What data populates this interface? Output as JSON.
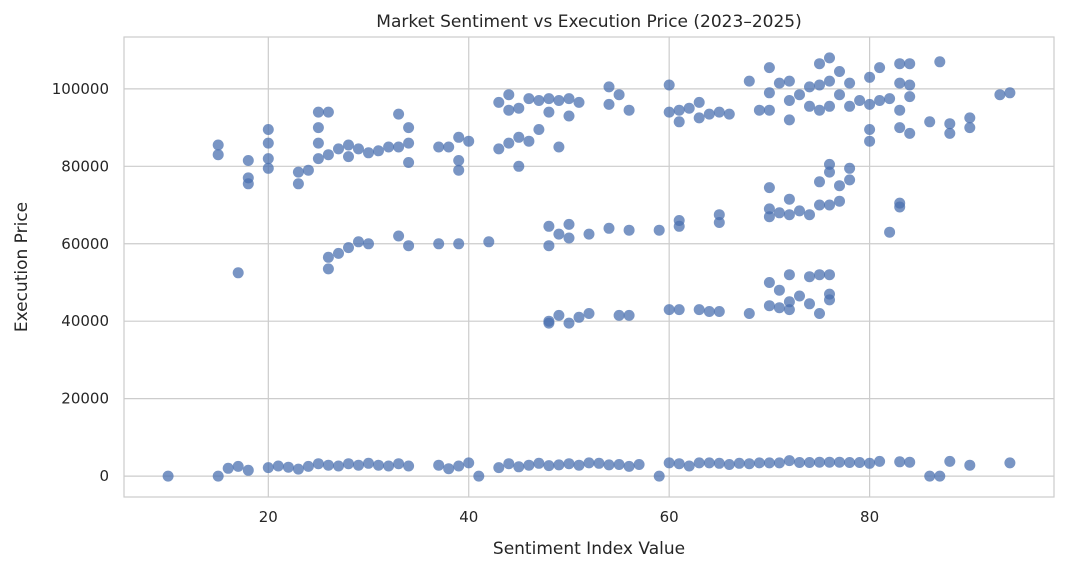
{
  "chart_data": {
    "type": "scatter",
    "title": "Market Sentiment vs Execution Price (2023–2025)",
    "xlabel": "Sentiment Index Value",
    "ylabel": "Execution Price",
    "xlim": [
      5.6,
      98.4
    ],
    "ylim": [
      -5400,
      113400
    ],
    "x_ticks": [
      20,
      40,
      60,
      80
    ],
    "y_ticks": [
      0,
      20000,
      40000,
      60000,
      80000,
      100000
    ],
    "grid": true,
    "marker_color": "#4c72b0",
    "series": [
      {
        "points": [
          [
            10,
            0
          ],
          [
            15,
            0
          ],
          [
            16,
            2000
          ],
          [
            17,
            2500
          ],
          [
            18,
            1500
          ],
          [
            20,
            2200
          ],
          [
            21,
            2600
          ],
          [
            22,
            2300
          ],
          [
            23,
            1800
          ],
          [
            24,
            2500
          ],
          [
            25,
            3200
          ],
          [
            26,
            2800
          ],
          [
            27,
            2600
          ],
          [
            28,
            3200
          ],
          [
            29,
            2800
          ],
          [
            30,
            3300
          ],
          [
            31,
            2800
          ],
          [
            32,
            2600
          ],
          [
            33,
            3200
          ],
          [
            34,
            2600
          ],
          [
            37,
            2800
          ],
          [
            38,
            1900
          ],
          [
            39,
            2600
          ],
          [
            40,
            3400
          ],
          [
            41,
            0
          ],
          [
            43,
            2200
          ],
          [
            44,
            3200
          ],
          [
            45,
            2400
          ],
          [
            46,
            2800
          ],
          [
            47,
            3300
          ],
          [
            48,
            2700
          ],
          [
            49,
            2900
          ],
          [
            50,
            3200
          ],
          [
            51,
            2800
          ],
          [
            52,
            3400
          ],
          [
            53,
            3300
          ],
          [
            54,
            2900
          ],
          [
            55,
            3000
          ],
          [
            56,
            2500
          ],
          [
            57,
            3000
          ],
          [
            59,
            0
          ],
          [
            60,
            3400
          ],
          [
            61,
            3200
          ],
          [
            62,
            2600
          ],
          [
            63,
            3400
          ],
          [
            64,
            3400
          ],
          [
            65,
            3300
          ],
          [
            66,
            3000
          ],
          [
            67,
            3300
          ],
          [
            68,
            3200
          ],
          [
            69,
            3400
          ],
          [
            70,
            3400
          ],
          [
            71,
            3400
          ],
          [
            72,
            4000
          ],
          [
            73,
            3500
          ],
          [
            74,
            3500
          ],
          [
            75,
            3600
          ],
          [
            76,
            3600
          ],
          [
            77,
            3600
          ],
          [
            78,
            3500
          ],
          [
            79,
            3500
          ],
          [
            80,
            3300
          ],
          [
            81,
            3800
          ],
          [
            83,
            3700
          ],
          [
            84,
            3600
          ],
          [
            86,
            0
          ],
          [
            87,
            0
          ],
          [
            88,
            3800
          ],
          [
            90,
            2800
          ],
          [
            94,
            3400
          ],
          [
            15,
            85500
          ],
          [
            15,
            83000
          ],
          [
            18,
            81500
          ],
          [
            18,
            77000
          ],
          [
            18,
            75500
          ],
          [
            20,
            89500
          ],
          [
            20,
            86000
          ],
          [
            20,
            82000
          ],
          [
            20,
            79500
          ],
          [
            23,
            78500
          ],
          [
            23,
            75500
          ],
          [
            24,
            79000
          ],
          [
            25,
            94000
          ],
          [
            25,
            90000
          ],
          [
            25,
            86000
          ],
          [
            25,
            82000
          ],
          [
            26,
            94000
          ],
          [
            26,
            83000
          ],
          [
            27,
            84500
          ],
          [
            28,
            85500
          ],
          [
            28,
            82500
          ],
          [
            29,
            84500
          ],
          [
            30,
            83500
          ],
          [
            31,
            84000
          ],
          [
            32,
            85000
          ],
          [
            33,
            93500
          ],
          [
            33,
            85000
          ],
          [
            34,
            90000
          ],
          [
            34,
            86000
          ],
          [
            34,
            81000
          ],
          [
            37,
            85000
          ],
          [
            38,
            85000
          ],
          [
            39,
            87500
          ],
          [
            39,
            81500
          ],
          [
            39,
            79000
          ],
          [
            40,
            86500
          ],
          [
            43,
            96500
          ],
          [
            43,
            84500
          ],
          [
            44,
            98500
          ],
          [
            44,
            94500
          ],
          [
            44,
            86000
          ],
          [
            45,
            95000
          ],
          [
            45,
            87500
          ],
          [
            45,
            80000
          ],
          [
            46,
            97500
          ],
          [
            46,
            86500
          ],
          [
            47,
            97000
          ],
          [
            47,
            89500
          ],
          [
            48,
            97500
          ],
          [
            48,
            94000
          ],
          [
            49,
            97000
          ],
          [
            49,
            85000
          ],
          [
            50,
            97500
          ],
          [
            50,
            93000
          ],
          [
            51,
            96500
          ],
          [
            54,
            100500
          ],
          [
            54,
            96000
          ],
          [
            55,
            98500
          ],
          [
            56,
            94500
          ],
          [
            60,
            101000
          ],
          [
            60,
            94000
          ],
          [
            61,
            94500
          ],
          [
            61,
            91500
          ],
          [
            62,
            95000
          ],
          [
            63,
            96500
          ],
          [
            63,
            92500
          ],
          [
            64,
            93500
          ],
          [
            65,
            94000
          ],
          [
            66,
            93500
          ],
          [
            68,
            102000
          ],
          [
            69,
            94500
          ],
          [
            70,
            105500
          ],
          [
            70,
            99000
          ],
          [
            70,
            94500
          ],
          [
            71,
            101500
          ],
          [
            72,
            102000
          ],
          [
            72,
            97000
          ],
          [
            72,
            92000
          ],
          [
            73,
            98500
          ],
          [
            74,
            100500
          ],
          [
            74,
            95500
          ],
          [
            75,
            106500
          ],
          [
            75,
            101000
          ],
          [
            75,
            94500
          ],
          [
            76,
            108000
          ],
          [
            76,
            102000
          ],
          [
            76,
            95500
          ],
          [
            77,
            104500
          ],
          [
            77,
            98500
          ],
          [
            78,
            101500
          ],
          [
            78,
            95500
          ],
          [
            79,
            97000
          ],
          [
            80,
            103000
          ],
          [
            80,
            96000
          ],
          [
            80,
            89500
          ],
          [
            80,
            86500
          ],
          [
            81,
            105500
          ],
          [
            81,
            97000
          ],
          [
            82,
            97500
          ],
          [
            83,
            106500
          ],
          [
            83,
            101500
          ],
          [
            83,
            94500
          ],
          [
            83,
            90000
          ],
          [
            84,
            106500
          ],
          [
            84,
            101000
          ],
          [
            84,
            98000
          ],
          [
            84,
            88500
          ],
          [
            86,
            91500
          ],
          [
            87,
            107000
          ],
          [
            88,
            91000
          ],
          [
            88,
            88500
          ],
          [
            90,
            92500
          ],
          [
            90,
            90000
          ],
          [
            93,
            98500
          ],
          [
            94,
            99000
          ],
          [
            17,
            52500
          ],
          [
            26,
            56500
          ],
          [
            26,
            53500
          ],
          [
            27,
            57500
          ],
          [
            28,
            59000
          ],
          [
            29,
            60500
          ],
          [
            30,
            60000
          ],
          [
            33,
            62000
          ],
          [
            34,
            59500
          ],
          [
            37,
            60000
          ],
          [
            39,
            60000
          ],
          [
            42,
            60500
          ],
          [
            48,
            64500
          ],
          [
            48,
            59500
          ],
          [
            49,
            62500
          ],
          [
            50,
            65000
          ],
          [
            50,
            61500
          ],
          [
            52,
            62500
          ],
          [
            54,
            64000
          ],
          [
            56,
            63500
          ],
          [
            59,
            63500
          ],
          [
            61,
            66000
          ],
          [
            61,
            64500
          ],
          [
            65,
            67500
          ],
          [
            65,
            65500
          ],
          [
            70,
            74500
          ],
          [
            70,
            69000
          ],
          [
            70,
            67000
          ],
          [
            71,
            68000
          ],
          [
            72,
            71500
          ],
          [
            72,
            67500
          ],
          [
            73,
            68500
          ],
          [
            74,
            67500
          ],
          [
            75,
            76000
          ],
          [
            75,
            70000
          ],
          [
            76,
            80500
          ],
          [
            76,
            78500
          ],
          [
            76,
            70000
          ],
          [
            77,
            71000
          ],
          [
            77,
            75000
          ],
          [
            78,
            79500
          ],
          [
            78,
            76500
          ],
          [
            82,
            63000
          ],
          [
            83,
            70500
          ],
          [
            83,
            69500
          ],
          [
            48,
            40000
          ],
          [
            48,
            39500
          ],
          [
            49,
            41500
          ],
          [
            50,
            39500
          ],
          [
            51,
            41000
          ],
          [
            52,
            42000
          ],
          [
            55,
            41500
          ],
          [
            56,
            41500
          ],
          [
            60,
            43000
          ],
          [
            61,
            43000
          ],
          [
            63,
            43000
          ],
          [
            64,
            42500
          ],
          [
            65,
            42500
          ],
          [
            68,
            42000
          ],
          [
            70,
            50000
          ],
          [
            70,
            44000
          ],
          [
            71,
            48000
          ],
          [
            71,
            43500
          ],
          [
            72,
            52000
          ],
          [
            72,
            45000
          ],
          [
            72,
            43000
          ],
          [
            73,
            46500
          ],
          [
            74,
            51500
          ],
          [
            74,
            44500
          ],
          [
            75,
            52000
          ],
          [
            75,
            42000
          ],
          [
            76,
            52000
          ],
          [
            76,
            47000
          ],
          [
            76,
            45500
          ]
        ]
      }
    ]
  }
}
